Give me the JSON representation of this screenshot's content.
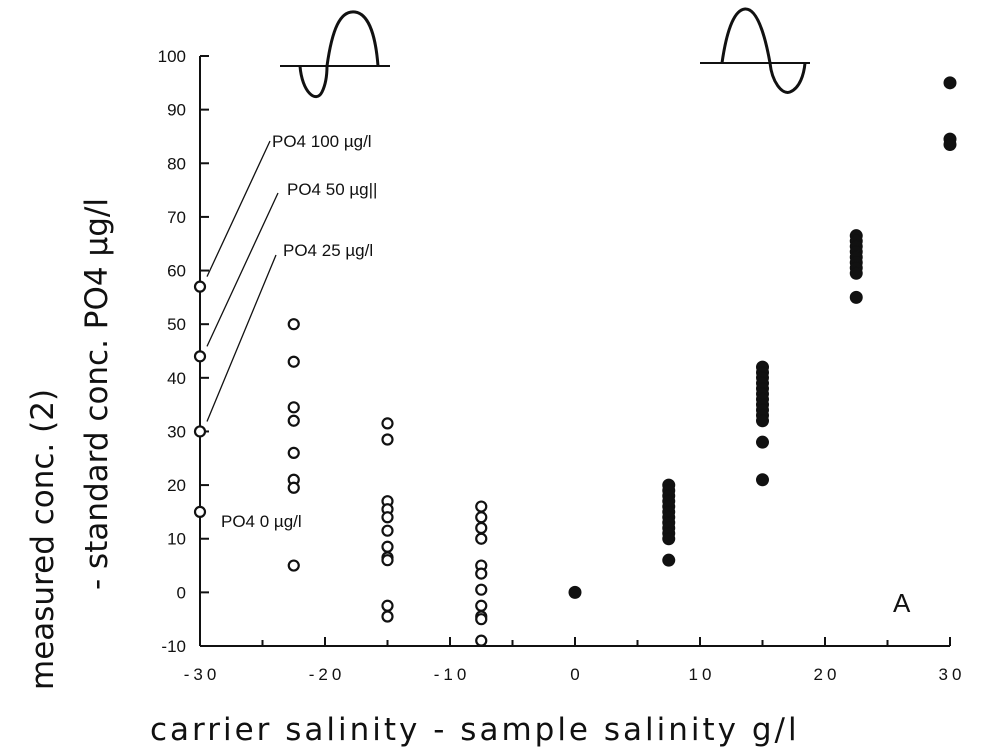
{
  "chart_data": {
    "type": "scatter",
    "title": "",
    "xlabel": "carrier  salinity  -  sample  salinity  g/l",
    "ylabel_line1": "measured  conc.     (2)",
    "ylabel_line2": "- standard  conc.    PO4  µg/l",
    "xlim": [
      -30,
      30
    ],
    "ylim": [
      -10,
      100
    ],
    "x_ticks": [
      -30,
      -20,
      -10,
      0,
      10,
      20,
      30
    ],
    "x_tick_labels": [
      "-30",
      "-20",
      "-10",
      "0",
      "10",
      "20",
      "30"
    ],
    "y_ticks": [
      -10,
      0,
      10,
      20,
      30,
      40,
      50,
      60,
      70,
      80,
      90,
      100
    ],
    "y_tick_labels": [
      "-10",
      "0",
      "10",
      "20",
      "30",
      "40",
      "50",
      "60",
      "70",
      "80",
      "90",
      "100"
    ],
    "grid": false,
    "panel_label": "A",
    "series": [
      {
        "marker": "open-circle",
        "points": [
          [
            -30,
            57
          ],
          [
            -30,
            44
          ],
          [
            -30,
            30
          ],
          [
            -30,
            15
          ],
          [
            -22.5,
            50
          ],
          [
            -22.5,
            43
          ],
          [
            -22.5,
            34.5
          ],
          [
            -22.5,
            32
          ],
          [
            -22.5,
            26
          ],
          [
            -22.5,
            21
          ],
          [
            -22.5,
            19.5
          ],
          [
            -22.5,
            5
          ],
          [
            -15,
            31.5
          ],
          [
            -15,
            28.5
          ],
          [
            -15,
            17
          ],
          [
            -15,
            15.5
          ],
          [
            -15,
            14
          ],
          [
            -15,
            11.5
          ],
          [
            -15,
            8.5
          ],
          [
            -15,
            6.5
          ],
          [
            -15,
            6
          ],
          [
            -15,
            -2.5
          ],
          [
            -15,
            -4.5
          ],
          [
            -7.5,
            16
          ],
          [
            -7.5,
            14
          ],
          [
            -7.5,
            12
          ],
          [
            -7.5,
            10
          ],
          [
            -7.5,
            5
          ],
          [
            -7.5,
            3.5
          ],
          [
            -7.5,
            0.5
          ],
          [
            -7.5,
            -2.5
          ],
          [
            -7.5,
            -4.5
          ],
          [
            -7.5,
            -5
          ],
          [
            -7.5,
            -9
          ]
        ]
      },
      {
        "marker": "filled-circle",
        "points": [
          [
            0,
            0
          ],
          [
            7.5,
            20
          ],
          [
            7.5,
            19
          ],
          [
            7.5,
            18
          ],
          [
            7.5,
            17
          ],
          [
            7.5,
            16
          ],
          [
            7.5,
            15
          ],
          [
            7.5,
            14
          ],
          [
            7.5,
            13
          ],
          [
            7.5,
            12
          ],
          [
            7.5,
            11
          ],
          [
            7.5,
            10
          ],
          [
            7.5,
            6
          ],
          [
            15,
            42
          ],
          [
            15,
            41
          ],
          [
            15,
            40
          ],
          [
            15,
            39
          ],
          [
            15,
            38
          ],
          [
            15,
            37
          ],
          [
            15,
            36
          ],
          [
            15,
            35
          ],
          [
            15,
            34
          ],
          [
            15,
            33
          ],
          [
            15,
            32
          ],
          [
            15,
            28
          ],
          [
            15,
            21
          ],
          [
            22.5,
            66.5
          ],
          [
            22.5,
            65.5
          ],
          [
            22.5,
            64.5
          ],
          [
            22.5,
            63.5
          ],
          [
            22.5,
            62.5
          ],
          [
            22.5,
            61.5
          ],
          [
            22.5,
            60.5
          ],
          [
            22.5,
            59.5
          ],
          [
            22.5,
            55
          ],
          [
            30,
            95
          ],
          [
            30,
            84.5
          ],
          [
            30,
            83.5
          ]
        ]
      }
    ],
    "annotations": [
      {
        "text": "PO4 100 µg/l",
        "x": -30,
        "y": 57
      },
      {
        "text": "PO4 50 µg||",
        "x": -30,
        "y": 44
      },
      {
        "text": "PO4 25 µg/l",
        "x": -30,
        "y": 30
      },
      {
        "text": "PO4 0 µg/l",
        "x": -30,
        "y": 15
      }
    ]
  }
}
